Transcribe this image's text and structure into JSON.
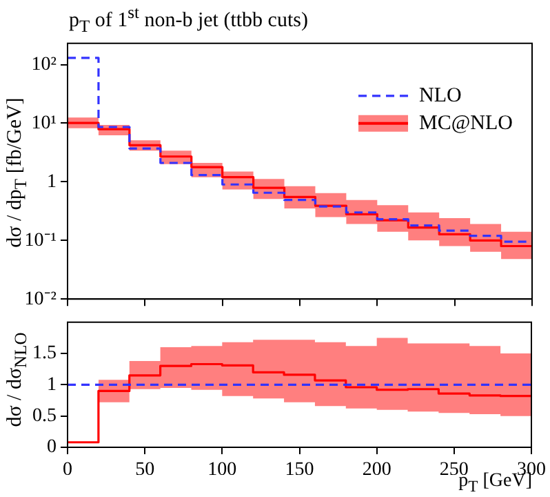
{
  "chart_data": [
    {
      "type": "step",
      "title": "p$_{T}$ of 1$^{st}$ non-b jet (ttbb cuts)",
      "ylabel": "dσ / dp$_{T}$ [fb/GeV]",
      "x": [
        0,
        20,
        40,
        60,
        80,
        100,
        120,
        140,
        160,
        180,
        200,
        220,
        240,
        260,
        280,
        300
      ],
      "series": [
        {
          "name": "NLO",
          "color": "#3333ff",
          "line_style": "dashed",
          "values": [
            130,
            8.6,
            3.7,
            2.1,
            1.3,
            0.9,
            0.65,
            0.49,
            0.38,
            0.3,
            0.23,
            0.18,
            0.147,
            0.12,
            0.095,
            0.095
          ]
        },
        {
          "name": "MC@NLO",
          "color": "#ff0000",
          "values": [
            10.1,
            7.9,
            4.2,
            2.7,
            1.78,
            1.2,
            0.79,
            0.55,
            0.39,
            0.28,
            0.22,
            0.166,
            0.127,
            0.1,
            0.08,
            0.08
          ],
          "lower": [
            8.2,
            6.2,
            3.4,
            2.0,
            1.2,
            0.74,
            0.51,
            0.35,
            0.25,
            0.19,
            0.14,
            0.1,
            0.08,
            0.064,
            0.048,
            0.048
          ],
          "upper": [
            12.5,
            9.3,
            5.1,
            3.4,
            2.1,
            1.5,
            1.12,
            0.84,
            0.64,
            0.49,
            0.4,
            0.3,
            0.24,
            0.19,
            0.14,
            0.14
          ]
        }
      ],
      "xlim": [
        0,
        300
      ],
      "xticks": [
        0,
        50,
        100,
        150,
        200,
        250,
        300
      ],
      "ylim": [
        0.01,
        230
      ],
      "yticks": [
        {
          "value": 0.01,
          "label": "10⁻²"
        },
        {
          "value": 0.1,
          "label": "10⁻¹"
        },
        1,
        {
          "value": 10,
          "label": "10¹"
        },
        {
          "value": 100,
          "label": "10²"
        }
      ],
      "log": "y",
      "legend": "top right",
      "tick_labels": "y"
    },
    {
      "type": "step",
      "xlabel": "p$_{T}$ [GeV]",
      "ylabel": "dσ / dσ$_{NLO}$",
      "x": [
        0,
        20,
        40,
        60,
        80,
        100,
        120,
        140,
        160,
        180,
        200,
        220,
        240,
        260,
        280,
        300
      ],
      "series": [
        {
          "color": "#3333ff",
          "line_style": "dashed",
          "values": [
            1,
            1,
            1,
            1,
            1,
            1,
            1,
            1,
            1,
            1,
            1,
            1,
            1,
            1,
            1,
            1
          ]
        },
        {
          "color": "#ff0000",
          "values": [
            0.08,
            0.9,
            1.15,
            1.3,
            1.33,
            1.31,
            1.2,
            1.16,
            1.07,
            0.96,
            0.92,
            0.93,
            0.86,
            0.83,
            0.82,
            0.82
          ],
          "lower": [
            null,
            0.72,
            0.93,
            0.95,
            0.92,
            0.82,
            0.78,
            0.72,
            0.66,
            0.62,
            0.6,
            0.57,
            0.55,
            0.53,
            0.5,
            0.5
          ],
          "upper": [
            null,
            1.08,
            1.38,
            1.6,
            1.62,
            1.68,
            1.72,
            1.72,
            1.68,
            1.62,
            1.75,
            1.66,
            1.66,
            1.62,
            1.5,
            1.5
          ]
        }
      ],
      "xlim": [
        0,
        300
      ],
      "xticks": [
        0,
        50,
        100,
        150,
        200,
        250,
        300
      ],
      "ylim": [
        0,
        2
      ],
      "yticks": [
        0,
        0.5,
        1,
        1.5
      ]
    }
  ]
}
